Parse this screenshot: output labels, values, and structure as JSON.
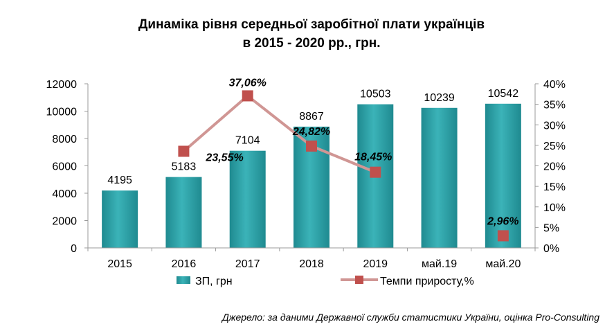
{
  "chart_data": {
    "type": "bar",
    "title_lines": [
      "Динаміка рівня середньої заробітної плати українців",
      "в 2015 - 2020 рр., грн."
    ],
    "categories": [
      "2015",
      "2016",
      "2017",
      "2018",
      "2019",
      "май.19",
      "май.20"
    ],
    "y_ticks": [
      "0",
      "2000",
      "4000",
      "6000",
      "8000",
      "10000",
      "12000"
    ],
    "y2_ticks": [
      "0%",
      "5%",
      "10%",
      "15%",
      "20%",
      "25%",
      "30%",
      "35%",
      "40%"
    ],
    "ylim": [
      0,
      12000
    ],
    "y2lim": [
      0,
      40
    ],
    "grid": false,
    "legend_position": "bottom",
    "series": [
      {
        "name": "ЗП, грн",
        "kind": "bar",
        "axis": "left",
        "color": "#2a9ba1",
        "values": [
          4195,
          5183,
          7104,
          8867,
          10503,
          10239,
          10542
        ],
        "labels": [
          "4195",
          "5183",
          "7104",
          "8867",
          "10503",
          "10239",
          "10542"
        ]
      },
      {
        "name": "Темпи приросту,%",
        "kind": "line",
        "axis": "right",
        "color": "#c0504d",
        "line_color": "#d09694",
        "points": [
          {
            "category": "2016",
            "value": 23.55,
            "label": "23,55%"
          },
          {
            "category": "2017",
            "value": 37.06,
            "label": "37,06%"
          },
          {
            "category": "2018",
            "value": 24.82,
            "label": "24,82%"
          },
          {
            "category": "2019",
            "value": 18.45,
            "label": "18,45%"
          },
          {
            "category": "май.20",
            "value": 2.96,
            "label": "2,96%",
            "connected": false
          }
        ]
      }
    ],
    "source": "Джерело: за даними Державної служби статистики України, оцінка Pro-Consulting"
  }
}
